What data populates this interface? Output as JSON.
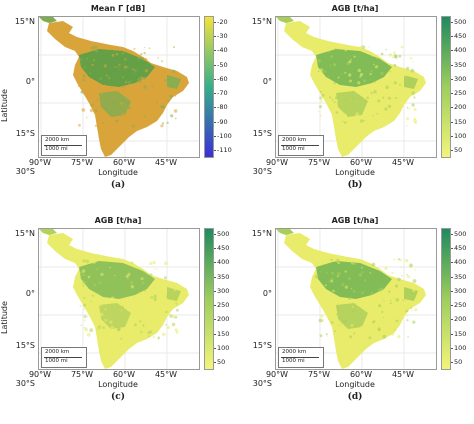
{
  "panels": [
    {
      "id": "a",
      "title": "Mean Γ [dB]",
      "caption": "(a)",
      "palette": "gamma",
      "show_ylabel": true,
      "show_xlabel": true,
      "ylabel": "Latitude",
      "xlabel": "Longitude",
      "colorbar": [
        "-20",
        "-30",
        "-40",
        "-50",
        "-60",
        "-70",
        "-80",
        "-90",
        "-100",
        "-110"
      ],
      "colors": {
        "land": "#d9a53a",
        "veg": "#7fae52",
        "dense": "#5f9e47",
        "bar_top": "#f3e23a",
        "bar_mid": "#33b08a",
        "bar_bot": "#3b2fd6"
      }
    },
    {
      "id": "b",
      "title": "AGB [t/ha]",
      "caption": "(b)",
      "palette": "agb",
      "show_ylabel": false,
      "show_xlabel": true,
      "ylabel": "",
      "xlabel": "Longitude",
      "colorbar": [
        "500",
        "450",
        "400",
        "350",
        "300",
        "250",
        "200",
        "150",
        "100",
        "50"
      ],
      "colors": {
        "land": "#e9ec6a",
        "veg": "#a9cd5a",
        "dense": "#7cb955",
        "bar_top": "#1f8a5e",
        "bar_mid": "#9dce5c",
        "bar_bot": "#f4f47a"
      }
    },
    {
      "id": "c",
      "title": "AGB [t/ha]",
      "caption": "(c)",
      "palette": "agb",
      "show_ylabel": true,
      "show_xlabel": true,
      "ylabel": "Latitude",
      "xlabel": "Longitude",
      "colorbar": [
        "500",
        "450",
        "400",
        "350",
        "300",
        "250",
        "200",
        "150",
        "100",
        "50"
      ],
      "colors": {
        "land": "#e8ec6a",
        "veg": "#b3d15c",
        "dense": "#8cc05a",
        "bar_top": "#1f8a5e",
        "bar_mid": "#9dce5c",
        "bar_bot": "#f4f47a"
      }
    },
    {
      "id": "d",
      "title": "AGB [t/ha]",
      "caption": "(d)",
      "palette": "agb",
      "show_ylabel": false,
      "show_xlabel": true,
      "ylabel": "",
      "xlabel": "Longitude",
      "colorbar": [
        "500",
        "450",
        "400",
        "350",
        "300",
        "250",
        "200",
        "150",
        "100",
        "50"
      ],
      "colors": {
        "land": "#e9ec6a",
        "veg": "#a9cd5a",
        "dense": "#7cb955",
        "bar_top": "#1f8a5e",
        "bar_mid": "#9dce5c",
        "bar_bot": "#f4f47a"
      }
    }
  ],
  "axes": {
    "lat_ticks": [
      "15°N",
      "0°",
      "15°S",
      "30°S"
    ],
    "lon_ticks": [
      "90°W",
      "75°W",
      "60°W",
      "45°W"
    ]
  },
  "scale_bar": {
    "km": "2000 km",
    "mi": "1000 mi"
  }
}
